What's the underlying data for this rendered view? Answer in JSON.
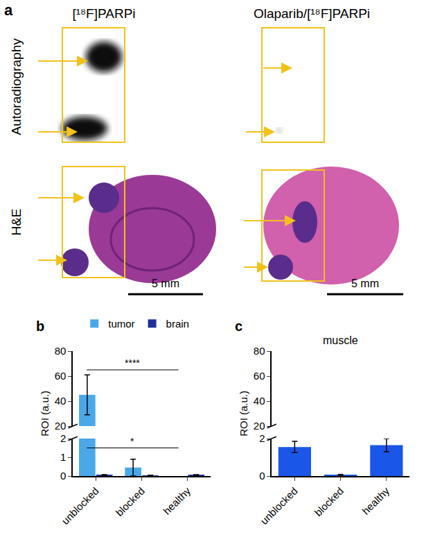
{
  "panel_a": {
    "label": "a",
    "columns": [
      "[¹⁸F]PARPi",
      "Olaparib/[¹⁸F]PARPi"
    ],
    "rows": [
      "Autoradiography",
      "H&E"
    ],
    "scale_bar": "5 mm"
  },
  "chart_data": [
    {
      "label": "b",
      "type": "bar",
      "y_label": "ROI (a.u.)",
      "categories": [
        "unblocked",
        "blocked",
        "healthy"
      ],
      "series": [
        {
          "name": "tumor",
          "color": "#4aa8e8",
          "values": [
            45,
            0.45,
            null
          ],
          "errors": [
            16,
            0.45,
            null
          ]
        },
        {
          "name": "brain",
          "color": "#1f2f9a",
          "values": [
            0.05,
            0.03,
            0.05
          ],
          "errors": [
            0.02,
            0.02,
            0.02
          ]
        }
      ],
      "ylim": [
        0,
        80
      ],
      "y_break": [
        2,
        20
      ],
      "yticks": [
        0,
        1,
        2,
        20,
        40,
        60,
        80
      ],
      "legend": "top",
      "annotations": [
        {
          "text": "****",
          "from": "unblocked",
          "to": "healthy",
          "y": 65
        },
        {
          "text": "*",
          "from": "unblocked",
          "to": "healthy",
          "y": 1.5
        }
      ]
    },
    {
      "label": "c",
      "type": "bar",
      "title": "muscle",
      "y_label": "ROI (a.u.)",
      "categories": [
        "unblocked",
        "blocked",
        "healthy"
      ],
      "values": [
        1.55,
        0.05,
        1.65
      ],
      "errors": [
        0.3,
        0.03,
        0.35
      ],
      "color": "#1a56e8",
      "ylim": [
        0,
        80
      ],
      "y_break": [
        2,
        20
      ],
      "yticks": [
        0,
        2,
        20,
        40,
        60,
        80
      ]
    }
  ]
}
